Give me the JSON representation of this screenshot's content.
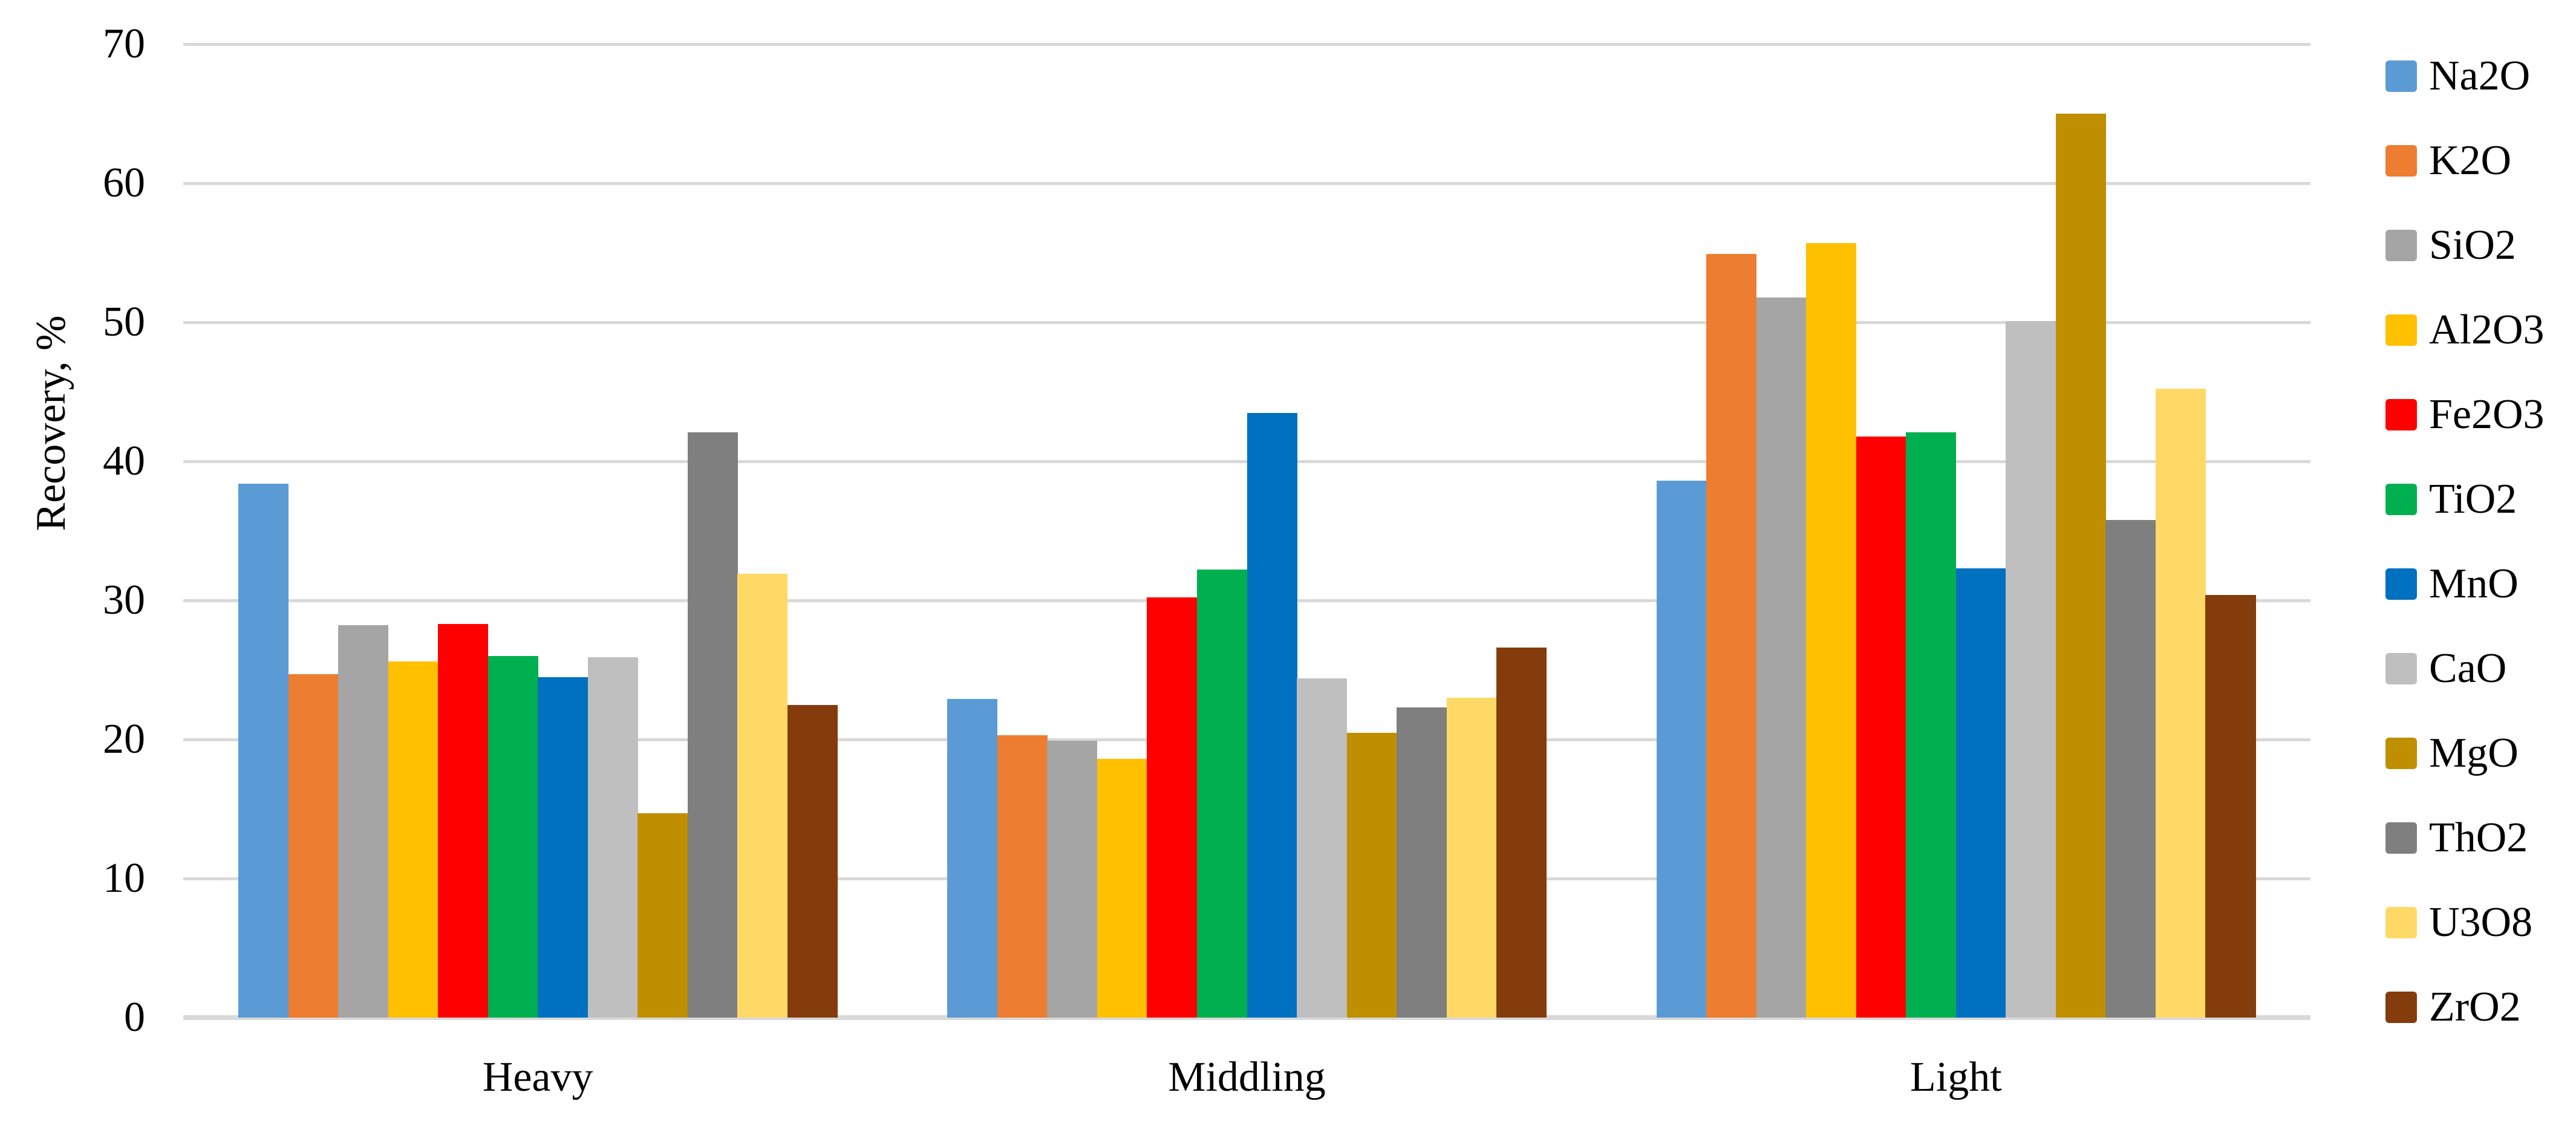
{
  "chart_data": {
    "type": "bar",
    "title": "",
    "ylabel": "Recovery, %",
    "xlabel": "",
    "ylim": [
      0,
      70
    ],
    "ytick_step": 10,
    "yticks": [
      0,
      10,
      20,
      30,
      40,
      50,
      60,
      70
    ],
    "grid": "horizontal",
    "legend_position": "right",
    "categories": [
      "Heavy",
      "Middling",
      "Light"
    ],
    "series": [
      {
        "name": "Na2O",
        "color": "#5B9BD5",
        "values": [
          38.4,
          22.9,
          38.6
        ]
      },
      {
        "name": "K2O",
        "color": "#ED7D31",
        "values": [
          24.7,
          20.3,
          54.9
        ]
      },
      {
        "name": "SiO2",
        "color": "#A5A5A5",
        "values": [
          28.2,
          19.9,
          51.8
        ]
      },
      {
        "name": "Al2O3",
        "color": "#FFC000",
        "values": [
          25.6,
          18.6,
          55.7
        ]
      },
      {
        "name": "Fe2O3",
        "color": "#FF0000",
        "values": [
          28.3,
          30.2,
          41.8
        ]
      },
      {
        "name": "TiO2",
        "color": "#00B050",
        "values": [
          26.0,
          32.2,
          42.1
        ]
      },
      {
        "name": "MnO",
        "color": "#0070C0",
        "values": [
          24.5,
          43.5,
          32.3
        ]
      },
      {
        "name": "CaO",
        "color": "#BFBFBF",
        "values": [
          25.9,
          24.4,
          50.1
        ]
      },
      {
        "name": "MgO",
        "color": "#BF8F00",
        "values": [
          14.7,
          20.5,
          65.0
        ]
      },
      {
        "name": "ThO2",
        "color": "#7F7F7F",
        "values": [
          42.1,
          22.3,
          35.8
        ]
      },
      {
        "name": "U3O8",
        "color": "#FFD966",
        "values": [
          31.9,
          23.0,
          45.2
        ]
      },
      {
        "name": "ZrO2",
        "color": "#843C0C",
        "values": [
          22.5,
          26.6,
          30.4
        ]
      }
    ],
    "colors": {
      "gridline": "#D9D9D9",
      "axis_baseline": "#D9D9D9",
      "text": "#000000",
      "background": "#FFFFFF"
    }
  }
}
